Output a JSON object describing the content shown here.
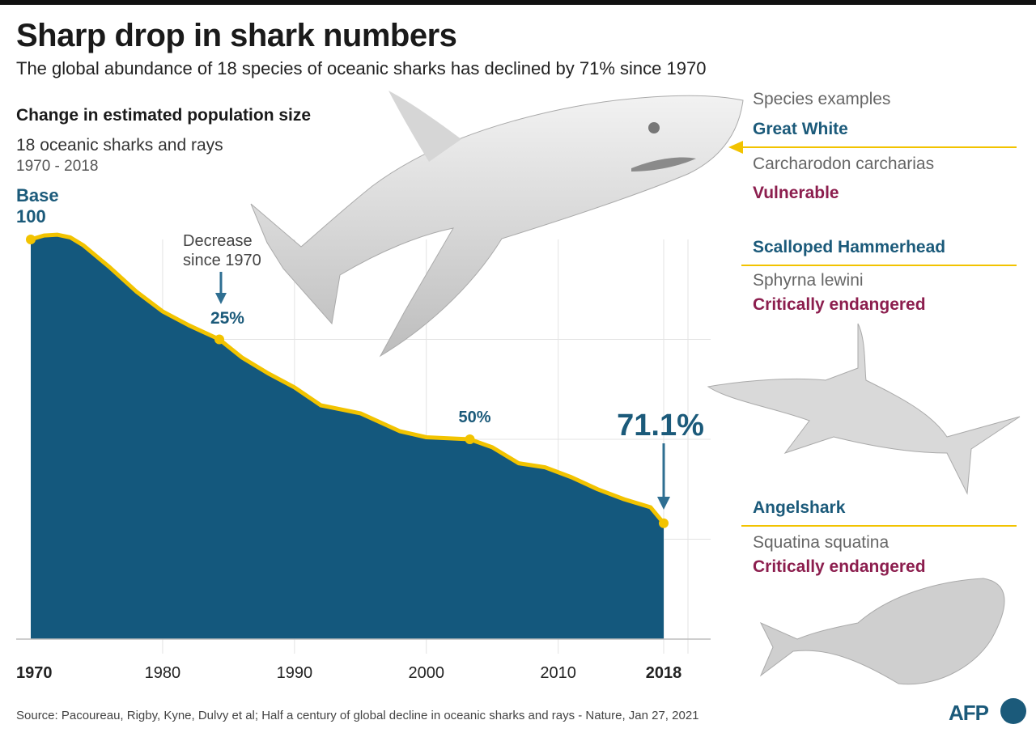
{
  "header": {
    "title": "Sharp drop in shark numbers",
    "subtitle": "The global abundance of 18 species of oceanic sharks has declined by 71% since 1970"
  },
  "chart_data": {
    "type": "area",
    "title": "Change in estimated population size",
    "subtitle": "18 oceanic sharks and rays",
    "range_label": "1970 - 2018",
    "base_label": [
      "Base",
      "100"
    ],
    "x": [
      1970,
      1971,
      1972,
      1973,
      1974,
      1976,
      1978,
      1980,
      1982,
      1984.3,
      1986,
      1988,
      1990,
      1992,
      1995,
      1998,
      2000,
      2003.3,
      2005,
      2007,
      2009,
      2011,
      2013,
      2015,
      2017,
      2018
    ],
    "y": [
      100,
      101,
      101.2,
      100.5,
      98.5,
      93,
      87,
      82,
      78.5,
      75,
      70.5,
      66.5,
      63,
      58.5,
      56.5,
      52,
      50.5,
      50,
      48,
      44,
      43,
      40.5,
      37.5,
      35,
      33,
      29
    ],
    "xlim": [
      1970,
      2018
    ],
    "ylim": [
      0,
      100
    ],
    "x_ticks": [
      "1970",
      "1980",
      "1990",
      "2000",
      "2010",
      "2018"
    ],
    "annotations": {
      "decrease_note": [
        "Decrease",
        "since 1970"
      ],
      "pct_25": {
        "label": "25%",
        "x": 1984.3,
        "y": 75
      },
      "pct_50": {
        "label": "50%",
        "x": 2003.3,
        "y": 50
      },
      "pct_final": {
        "label": "71.1%",
        "x": 2018,
        "y": 29
      }
    },
    "grid": true,
    "colors": {
      "area": "#14587d",
      "line": "#f2c300",
      "accent": "#1b5a7a"
    }
  },
  "species": {
    "heading": "Species examples",
    "items": [
      {
        "name": "Great White",
        "latin": "Carcharodon carcharias",
        "status": "Vulnerable"
      },
      {
        "name": "Scalloped Hammerhead",
        "latin": "Sphyrna lewini",
        "status": "Critically endangered"
      },
      {
        "name": "Angelshark",
        "latin": "Squatina squatina",
        "status": "Critically endangered"
      }
    ]
  },
  "footer": {
    "source": "Source: Pacoureau, Rigby, Kyne, Dulvy et al; Half a century of global decline in oceanic sharks and rays - Nature, Jan 27, 2021",
    "logo": "AFP"
  }
}
